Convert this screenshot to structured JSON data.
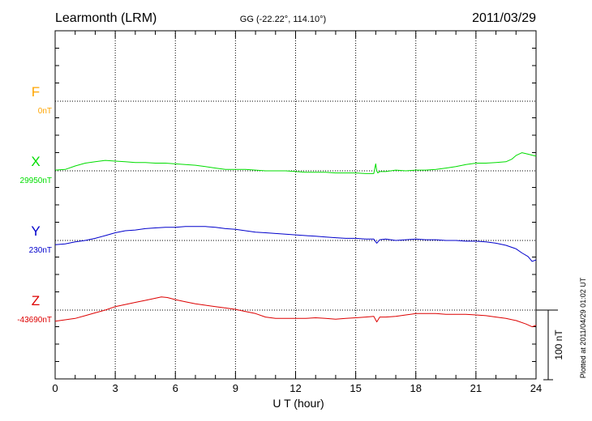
{
  "chart_data": {
    "type": "line",
    "title": "Learmonth (LRM)",
    "subtitle": "GG (-22.22°, 114.10°)",
    "date": "2011/03/29",
    "xlabel": "U T (hour)",
    "xlim": [
      0,
      24
    ],
    "xticks": [
      "0",
      "3",
      "6",
      "9",
      "12",
      "15",
      "18",
      "21",
      "24"
    ],
    "grid": true,
    "scale_bar_label": "100 nT",
    "footer": "Plotted at 2011/04/29 01:02 UT",
    "series": [
      {
        "name": "F",
        "baseline": "0nT",
        "color": "#ffa500",
        "x": [],
        "y": []
      },
      {
        "name": "X",
        "baseline": "29950nT",
        "color": "#00dd00",
        "x": [
          0,
          0.5,
          1,
          1.5,
          2,
          2.5,
          3,
          3.5,
          4,
          4.5,
          5,
          5.5,
          6,
          6.5,
          7,
          7.5,
          8,
          8.5,
          9,
          9.5,
          10,
          10.5,
          11,
          11.5,
          12,
          12.5,
          13,
          13.5,
          14,
          14.5,
          15,
          15.5,
          15.9,
          16.0,
          16.05,
          16.1,
          16.2,
          16.5,
          17,
          17.5,
          18,
          18.5,
          19,
          19.5,
          20,
          20.5,
          21,
          21.5,
          22,
          22.5,
          22.8,
          23,
          23.3,
          23.6,
          24
        ],
        "y": [
          1,
          2,
          7,
          11,
          13,
          15,
          14,
          13,
          12,
          12,
          11,
          11,
          10,
          9,
          8,
          6,
          4,
          2,
          2,
          2,
          1,
          0,
          0,
          0,
          -1,
          -2,
          -2,
          -2,
          -3,
          -3,
          -3,
          -4,
          -4,
          10,
          0,
          -3,
          -1,
          -1,
          1,
          0,
          1,
          1,
          2,
          4,
          6,
          9,
          11,
          11,
          12,
          13,
          17,
          22,
          26,
          24,
          21
        ]
      },
      {
        "name": "Y",
        "baseline": "230nT",
        "color": "#0000cc",
        "x": [
          0,
          0.5,
          1,
          1.5,
          2,
          2.5,
          3,
          3.5,
          4,
          4.5,
          5,
          5.5,
          6,
          6.5,
          7,
          7.5,
          8,
          8.5,
          9,
          9.5,
          10,
          10.5,
          11,
          11.5,
          12,
          12.5,
          13,
          13.5,
          14,
          14.5,
          15,
          15.5,
          15.9,
          16.05,
          16.2,
          16.5,
          17,
          17.5,
          18,
          18.5,
          19,
          19.5,
          20,
          20.5,
          21,
          21.5,
          22,
          22.5,
          23,
          23.3,
          23.6,
          23.8,
          24
        ],
        "y": [
          -6,
          -5,
          -2,
          0,
          3,
          7,
          11,
          14,
          15,
          17,
          18,
          19,
          19,
          20,
          20,
          20,
          19,
          17,
          16,
          14,
          12,
          11,
          10,
          9,
          8,
          7,
          6,
          5,
          4,
          3,
          3,
          2,
          2,
          -4,
          1,
          2,
          0,
          1,
          2,
          1,
          1,
          0,
          0,
          -1,
          -1,
          -2,
          -4,
          -7,
          -12,
          -18,
          -23,
          -30,
          -28
        ]
      },
      {
        "name": "Z",
        "baseline": "-43690nT",
        "color": "#dd0000",
        "x": [
          0,
          0.5,
          1,
          1.5,
          2,
          2.5,
          3,
          3.5,
          4,
          4.5,
          5,
          5.3,
          5.6,
          6,
          6.5,
          7,
          7.5,
          8,
          8.5,
          9,
          9.5,
          10,
          10.5,
          11,
          11.5,
          12,
          12.5,
          13,
          13.5,
          14,
          14.5,
          15,
          15.5,
          15.9,
          16.05,
          16.2,
          16.5,
          17,
          17.5,
          18,
          18.5,
          19,
          19.5,
          20,
          20.5,
          21,
          21.5,
          22,
          22.5,
          23,
          23.5,
          23.8,
          24
        ],
        "y": [
          -16,
          -14,
          -12,
          -8,
          -4,
          0,
          5,
          8,
          11,
          14,
          17,
          19,
          18,
          15,
          12,
          9,
          7,
          5,
          3,
          1,
          -2,
          -5,
          -10,
          -12,
          -12,
          -12,
          -12,
          -11,
          -12,
          -13,
          -12,
          -11,
          -10,
          -9,
          -17,
          -10,
          -10,
          -9,
          -7,
          -5,
          -5,
          -5,
          -6,
          -6,
          -6,
          -7,
          -8,
          -10,
          -12,
          -15,
          -20,
          -24,
          -22
        ]
      }
    ]
  }
}
